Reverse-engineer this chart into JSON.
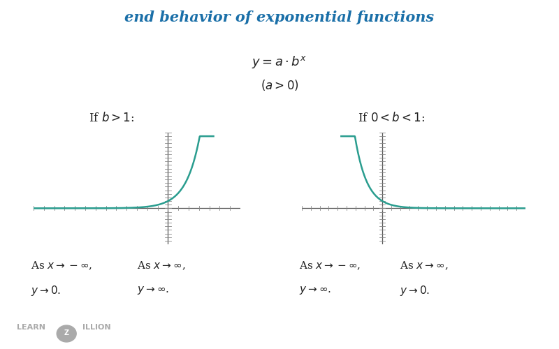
{
  "title": "end behavior of exponential functions",
  "title_color": "#1a6fa8",
  "title_fontsize": 15,
  "bg_color": "#ffffff",
  "curve_color": "#2a9d8f",
  "axis_color": "#555555",
  "tick_color": "#888888",
  "formula_line1": "$y = a \\cdot b^x$",
  "formula_line2": "$(a > 0)$",
  "label_left": "If $b > 1$:",
  "label_right": "If $0 < b < 1$:",
  "text_bottom_left1": "As $x \\to -\\infty$,",
  "text_bottom_left2": "$y \\to 0.$",
  "text_bottom_left3": "As $x \\to \\infty$,",
  "text_bottom_left4": "$y \\to \\infty.$",
  "text_bottom_right1": "As $x \\to -\\infty$,",
  "text_bottom_right2": "$y \\to \\infty.$",
  "text_bottom_right3": "As $x \\to \\infty$,",
  "text_bottom_right4": "$y \\to 0.$",
  "watermark_color": "#aaaaaa",
  "logo_color": "#aaaaaa"
}
